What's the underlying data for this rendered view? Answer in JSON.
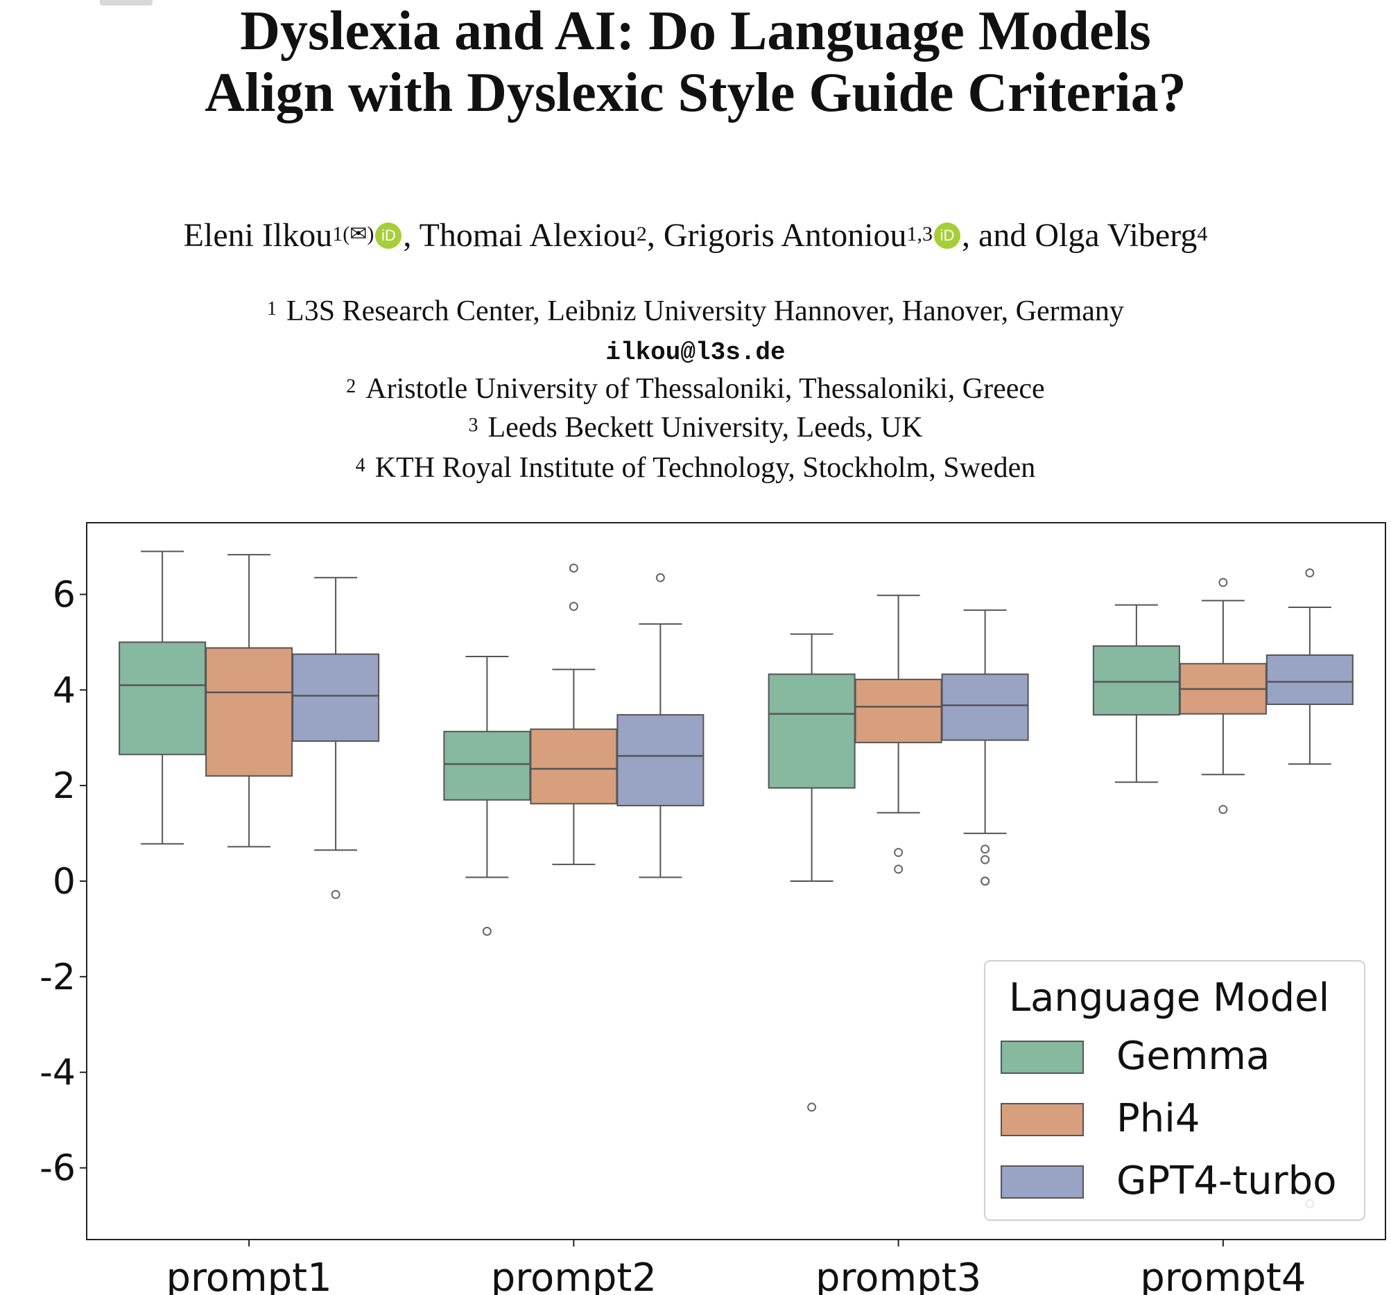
{
  "paper": {
    "title_line1": "Dyslexia and AI: Do Language Models",
    "title_line2": "Align with Dyslexic Style Guide Criteria?",
    "authors": [
      {
        "name": "Eleni Ilkou",
        "sup": "1(✉)",
        "orcid": true,
        "sep": ", "
      },
      {
        "name": "Thomai Alexiou",
        "sup": "2",
        "orcid": false,
        "sep": ", "
      },
      {
        "name": "Grigoris Antoniou",
        "sup": "1,3",
        "orcid": true,
        "sep": ", and "
      },
      {
        "name": "Olga Viberg",
        "sup": "4",
        "orcid": false,
        "sep": ""
      }
    ],
    "orcid_label": "iD",
    "affiliations": [
      {
        "num": "1",
        "text": "L3S Research Center, Leibniz University Hannover, Hanover, Germany"
      },
      {
        "num": "",
        "text": "ilkou@l3s.de"
      },
      {
        "num": "2",
        "text": "Aristotle University of Thessaloniki, Thessaloniki, Greece"
      },
      {
        "num": "3",
        "text": "Leeds Beckett University, Leeds, UK"
      },
      {
        "num": "4",
        "text": "KTH Royal Institute of Technology, Stockholm, Sweden"
      }
    ]
  },
  "chart_data": {
    "type": "box",
    "categories": [
      "prompt1",
      "prompt2",
      "prompt3",
      "prompt4"
    ],
    "ylim": [
      -7.5,
      7.5
    ],
    "yticks": [
      -6,
      -4,
      -2,
      0,
      2,
      4,
      6
    ],
    "ytick_labels": [
      "-6",
      "-4",
      "-2",
      "0",
      "2",
      "4",
      "6"
    ],
    "legend_title": "Language Model",
    "legend_position": "lower-right",
    "series": [
      {
        "name": "Gemma",
        "color": "#87b8a0",
        "boxes": [
          {
            "whislo": 0.78,
            "q1": 2.65,
            "med": 4.1,
            "q3": 5.0,
            "whishi": 6.9,
            "fliers": []
          },
          {
            "whislo": 0.08,
            "q1": 1.7,
            "med": 2.45,
            "q3": 3.13,
            "whishi": 4.7,
            "fliers": [
              -1.05
            ]
          },
          {
            "whislo": 0.0,
            "q1": 1.95,
            "med": 3.5,
            "q3": 4.33,
            "whishi": 5.17,
            "fliers": [
              -4.73
            ]
          },
          {
            "whislo": 2.07,
            "q1": 3.48,
            "med": 4.17,
            "q3": 4.92,
            "whishi": 5.78,
            "fliers": []
          }
        ]
      },
      {
        "name": "Phi4",
        "color": "#d79f7e",
        "boxes": [
          {
            "whislo": 0.72,
            "q1": 2.2,
            "med": 3.95,
            "q3": 4.88,
            "whishi": 6.83,
            "fliers": []
          },
          {
            "whislo": 0.35,
            "q1": 1.62,
            "med": 2.35,
            "q3": 3.18,
            "whishi": 4.43,
            "fliers": [
              5.75,
              6.55
            ]
          },
          {
            "whislo": 1.43,
            "q1": 2.9,
            "med": 3.65,
            "q3": 4.22,
            "whishi": 5.98,
            "fliers": [
              0.6,
              0.25
            ]
          },
          {
            "whislo": 2.23,
            "q1": 3.5,
            "med": 4.02,
            "q3": 4.55,
            "whishi": 5.87,
            "fliers": [
              6.25,
              1.5
            ]
          }
        ]
      },
      {
        "name": "GPT4-turbo",
        "color": "#99a3c4",
        "boxes": [
          {
            "whislo": 0.65,
            "q1": 2.93,
            "med": 3.88,
            "q3": 4.75,
            "whishi": 6.35,
            "fliers": [
              -0.28
            ]
          },
          {
            "whislo": 0.08,
            "q1": 1.58,
            "med": 2.62,
            "q3": 3.48,
            "whishi": 5.38,
            "fliers": [
              6.35
            ]
          },
          {
            "whislo": 1.0,
            "q1": 2.95,
            "med": 3.68,
            "q3": 4.33,
            "whishi": 5.67,
            "fliers": [
              0.67,
              0.45,
              0.0,
              0.0
            ]
          },
          {
            "whislo": 2.45,
            "q1": 3.7,
            "med": 4.17,
            "q3": 4.73,
            "whishi": 5.73,
            "fliers": [
              6.45,
              -6.75
            ]
          }
        ]
      }
    ]
  }
}
